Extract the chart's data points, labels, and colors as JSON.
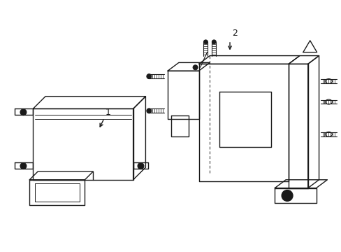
{
  "background_color": "#ffffff",
  "line_color": "#1a1a1a",
  "line_width": 1.0,
  "label1": "1",
  "label2": "2",
  "fig_width": 4.89,
  "fig_height": 3.6,
  "dpi": 100
}
